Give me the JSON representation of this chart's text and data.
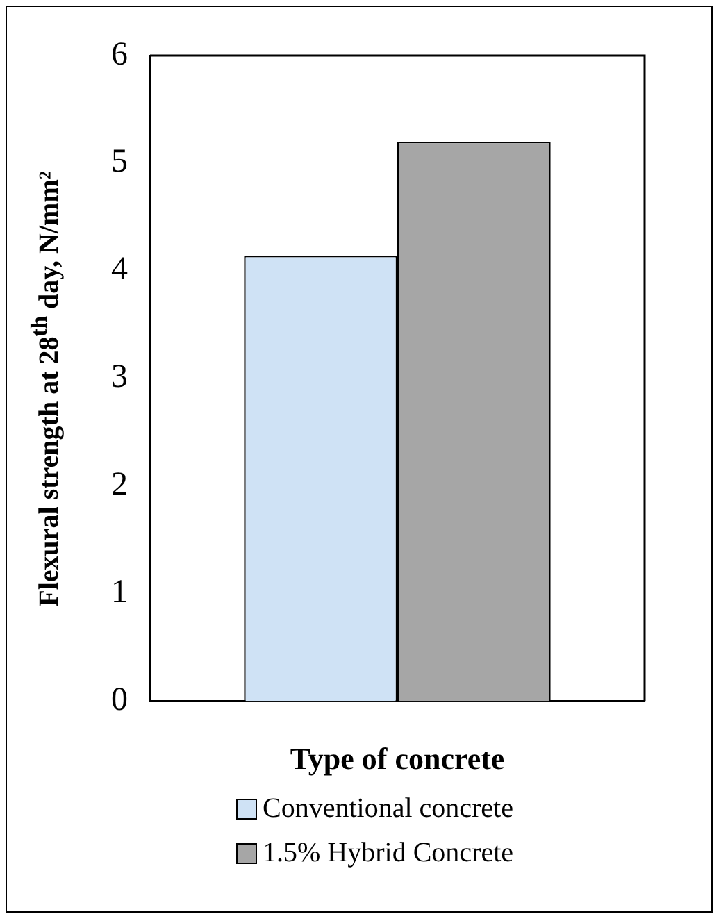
{
  "chart_data": {
    "type": "bar",
    "xlabel": "Type of concrete",
    "ylabel": "Flexural strength at 28$^{th}$ day, N/mm²",
    "categories": [
      null
    ],
    "series": [
      {
        "name": "Conventional concrete",
        "color": "#cfe2f5",
        "values": [
          4.14
        ]
      },
      {
        "name": "1.5% Hybrid Concrete",
        "color": "#a6a6a6",
        "values": [
          5.2
        ]
      }
    ],
    "ylim": [
      0,
      6
    ],
    "yticks": [
      0,
      1,
      2,
      3,
      4,
      5,
      6
    ],
    "grid": false,
    "legend": "bottom"
  }
}
